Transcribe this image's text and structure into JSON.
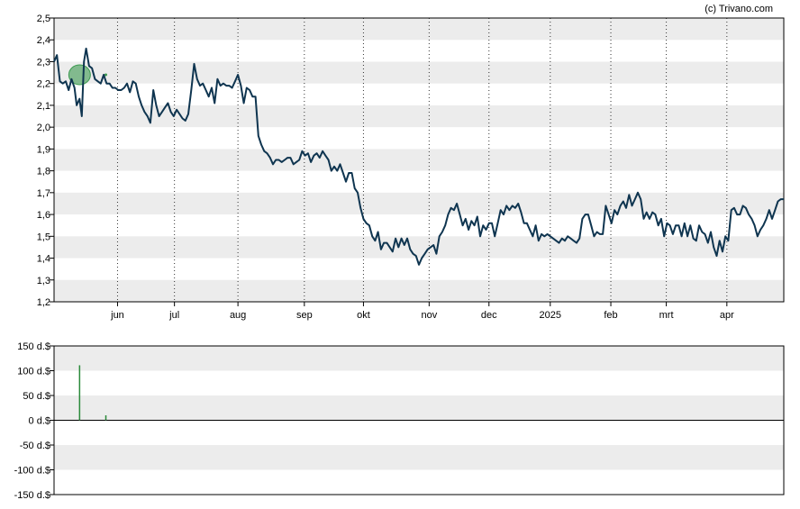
{
  "credit": "(c) Trivano.com",
  "colors": {
    "line": "#0f3550",
    "band": "#ececec",
    "bar": "#2a8a3a",
    "marker": "#3c9a50"
  },
  "chart_data": [
    {
      "type": "line",
      "ylim": [
        1.2,
        2.5
      ],
      "yticks": [
        "1,2",
        "1,3",
        "1,4",
        "1,5",
        "1,6",
        "1,7",
        "1,8",
        "1,9",
        "2,0",
        "2,1",
        "2,2",
        "2,3",
        "2,4",
        "2,5"
      ],
      "xticks": [
        {
          "label": "jun",
          "t": 0.087
        },
        {
          "label": "jul",
          "t": 0.165
        },
        {
          "label": "aug",
          "t": 0.252
        },
        {
          "label": "sep",
          "t": 0.343
        },
        {
          "label": "okt",
          "t": 0.424
        },
        {
          "label": "nov",
          "t": 0.514
        },
        {
          "label": "dec",
          "t": 0.596
        },
        {
          "label": "2025",
          "t": 0.68
        },
        {
          "label": "feb",
          "t": 0.763
        },
        {
          "label": "mrt",
          "t": 0.839
        },
        {
          "label": "apr",
          "t": 0.922
        }
      ],
      "grid": "horizontal bands, dotted vertical lines at month ticks",
      "events": [
        {
          "t": 0.035,
          "y": 2.24,
          "kind": "circle"
        },
        {
          "t": 0.071,
          "y": 2.24,
          "kind": "dot"
        }
      ],
      "series": [
        {
          "values": [
            [
              0.0,
              2.3
            ],
            [
              0.004,
              2.33
            ],
            [
              0.008,
              2.21
            ],
            [
              0.012,
              2.2
            ],
            [
              0.016,
              2.21
            ],
            [
              0.02,
              2.17
            ],
            [
              0.024,
              2.22
            ],
            [
              0.028,
              2.18
            ],
            [
              0.031,
              2.1
            ],
            [
              0.035,
              2.13
            ],
            [
              0.038,
              2.05
            ],
            [
              0.041,
              2.3
            ],
            [
              0.044,
              2.36
            ],
            [
              0.048,
              2.28
            ],
            [
              0.052,
              2.27
            ],
            [
              0.056,
              2.22
            ],
            [
              0.06,
              2.21
            ],
            [
              0.064,
              2.2
            ],
            [
              0.068,
              2.24
            ],
            [
              0.072,
              2.2
            ],
            [
              0.076,
              2.2
            ],
            [
              0.08,
              2.18
            ],
            [
              0.084,
              2.18
            ],
            [
              0.088,
              2.17
            ],
            [
              0.092,
              2.17
            ],
            [
              0.096,
              2.18
            ],
            [
              0.1,
              2.2
            ],
            [
              0.104,
              2.16
            ],
            [
              0.108,
              2.21
            ],
            [
              0.112,
              2.2
            ],
            [
              0.116,
              2.14
            ],
            [
              0.12,
              2.1
            ],
            [
              0.124,
              2.07
            ],
            [
              0.128,
              2.05
            ],
            [
              0.132,
              2.02
            ],
            [
              0.136,
              2.17
            ],
            [
              0.14,
              2.1
            ],
            [
              0.144,
              2.05
            ],
            [
              0.148,
              2.07
            ],
            [
              0.152,
              2.09
            ],
            [
              0.156,
              2.11
            ],
            [
              0.16,
              2.07
            ],
            [
              0.164,
              2.05
            ],
            [
              0.168,
              2.08
            ],
            [
              0.172,
              2.06
            ],
            [
              0.176,
              2.04
            ],
            [
              0.18,
              2.03
            ],
            [
              0.184,
              2.06
            ],
            [
              0.188,
              2.17
            ],
            [
              0.192,
              2.29
            ],
            [
              0.196,
              2.22
            ],
            [
              0.2,
              2.19
            ],
            [
              0.204,
              2.2
            ],
            [
              0.208,
              2.17
            ],
            [
              0.212,
              2.14
            ],
            [
              0.216,
              2.18
            ],
            [
              0.22,
              2.11
            ],
            [
              0.224,
              2.22
            ],
            [
              0.228,
              2.19
            ],
            [
              0.232,
              2.2
            ],
            [
              0.236,
              2.19
            ],
            [
              0.24,
              2.19
            ],
            [
              0.244,
              2.18
            ],
            [
              0.248,
              2.21
            ],
            [
              0.252,
              2.24
            ],
            [
              0.256,
              2.19
            ],
            [
              0.26,
              2.11
            ],
            [
              0.264,
              2.18
            ],
            [
              0.268,
              2.17
            ],
            [
              0.272,
              2.14
            ],
            [
              0.276,
              2.14
            ],
            [
              0.28,
              1.96
            ],
            [
              0.284,
              1.92
            ],
            [
              0.288,
              1.89
            ],
            [
              0.292,
              1.88
            ],
            [
              0.296,
              1.86
            ],
            [
              0.3,
              1.83
            ],
            [
              0.304,
              1.85
            ],
            [
              0.308,
              1.85
            ],
            [
              0.312,
              1.84
            ],
            [
              0.316,
              1.85
            ],
            [
              0.32,
              1.86
            ],
            [
              0.324,
              1.86
            ],
            [
              0.328,
              1.83
            ],
            [
              0.332,
              1.84
            ],
            [
              0.336,
              1.85
            ],
            [
              0.34,
              1.89
            ],
            [
              0.344,
              1.87
            ],
            [
              0.348,
              1.88
            ],
            [
              0.352,
              1.84
            ],
            [
              0.356,
              1.87
            ],
            [
              0.36,
              1.88
            ],
            [
              0.364,
              1.86
            ],
            [
              0.368,
              1.89
            ],
            [
              0.372,
              1.87
            ],
            [
              0.376,
              1.85
            ],
            [
              0.38,
              1.8
            ],
            [
              0.384,
              1.82
            ],
            [
              0.388,
              1.8
            ],
            [
              0.392,
              1.83
            ],
            [
              0.396,
              1.79
            ],
            [
              0.4,
              1.75
            ],
            [
              0.404,
              1.79
            ],
            [
              0.408,
              1.79
            ],
            [
              0.412,
              1.72
            ],
            [
              0.416,
              1.7
            ],
            [
              0.42,
              1.63
            ],
            [
              0.424,
              1.58
            ],
            [
              0.428,
              1.56
            ],
            [
              0.432,
              1.55
            ],
            [
              0.436,
              1.5
            ],
            [
              0.44,
              1.48
            ],
            [
              0.444,
              1.52
            ],
            [
              0.448,
              1.44
            ],
            [
              0.452,
              1.47
            ],
            [
              0.456,
              1.47
            ],
            [
              0.46,
              1.45
            ],
            [
              0.464,
              1.43
            ],
            [
              0.468,
              1.49
            ],
            [
              0.472,
              1.45
            ],
            [
              0.476,
              1.49
            ],
            [
              0.48,
              1.46
            ],
            [
              0.484,
              1.49
            ],
            [
              0.488,
              1.44
            ],
            [
              0.492,
              1.42
            ],
            [
              0.496,
              1.41
            ],
            [
              0.5,
              1.37
            ],
            [
              0.504,
              1.4
            ],
            [
              0.508,
              1.42
            ],
            [
              0.512,
              1.44
            ],
            [
              0.516,
              1.45
            ],
            [
              0.52,
              1.46
            ],
            [
              0.524,
              1.42
            ],
            [
              0.528,
              1.5
            ],
            [
              0.532,
              1.52
            ],
            [
              0.536,
              1.55
            ],
            [
              0.54,
              1.6
            ],
            [
              0.544,
              1.63
            ],
            [
              0.548,
              1.62
            ],
            [
              0.552,
              1.65
            ],
            [
              0.556,
              1.6
            ],
            [
              0.56,
              1.55
            ],
            [
              0.564,
              1.58
            ],
            [
              0.568,
              1.53
            ],
            [
              0.572,
              1.57
            ],
            [
              0.576,
              1.55
            ],
            [
              0.58,
              1.59
            ],
            [
              0.584,
              1.5
            ],
            [
              0.588,
              1.55
            ],
            [
              0.592,
              1.53
            ],
            [
              0.596,
              1.56
            ],
            [
              0.6,
              1.56
            ],
            [
              0.604,
              1.5
            ],
            [
              0.608,
              1.56
            ],
            [
              0.612,
              1.62
            ],
            [
              0.616,
              1.6
            ],
            [
              0.62,
              1.64
            ],
            [
              0.624,
              1.62
            ],
            [
              0.628,
              1.64
            ],
            [
              0.632,
              1.63
            ],
            [
              0.636,
              1.65
            ],
            [
              0.64,
              1.61
            ],
            [
              0.644,
              1.56
            ],
            [
              0.648,
              1.56
            ],
            [
              0.652,
              1.53
            ],
            [
              0.656,
              1.5
            ],
            [
              0.66,
              1.55
            ],
            [
              0.664,
              1.48
            ],
            [
              0.668,
              1.51
            ],
            [
              0.672,
              1.5
            ],
            [
              0.676,
              1.51
            ],
            [
              0.68,
              1.5
            ],
            [
              0.684,
              1.49
            ],
            [
              0.688,
              1.48
            ],
            [
              0.692,
              1.47
            ],
            [
              0.696,
              1.49
            ],
            [
              0.7,
              1.48
            ],
            [
              0.704,
              1.5
            ],
            [
              0.708,
              1.49
            ],
            [
              0.712,
              1.48
            ],
            [
              0.716,
              1.47
            ],
            [
              0.72,
              1.49
            ],
            [
              0.724,
              1.58
            ],
            [
              0.728,
              1.6
            ],
            [
              0.732,
              1.6
            ],
            [
              0.736,
              1.55
            ],
            [
              0.74,
              1.5
            ],
            [
              0.744,
              1.52
            ],
            [
              0.748,
              1.51
            ],
            [
              0.752,
              1.51
            ],
            [
              0.756,
              1.64
            ],
            [
              0.76,
              1.6
            ],
            [
              0.764,
              1.56
            ],
            [
              0.768,
              1.62
            ],
            [
              0.772,
              1.6
            ],
            [
              0.776,
              1.64
            ],
            [
              0.78,
              1.66
            ],
            [
              0.784,
              1.63
            ],
            [
              0.788,
              1.69
            ],
            [
              0.792,
              1.64
            ],
            [
              0.796,
              1.67
            ],
            [
              0.8,
              1.7
            ],
            [
              0.804,
              1.67
            ],
            [
              0.808,
              1.58
            ],
            [
              0.812,
              1.61
            ],
            [
              0.816,
              1.58
            ],
            [
              0.82,
              1.61
            ],
            [
              0.824,
              1.6
            ],
            [
              0.828,
              1.55
            ],
            [
              0.832,
              1.58
            ],
            [
              0.836,
              1.5
            ],
            [
              0.84,
              1.56
            ],
            [
              0.844,
              1.55
            ],
            [
              0.848,
              1.51
            ],
            [
              0.852,
              1.55
            ],
            [
              0.856,
              1.55
            ],
            [
              0.86,
              1.5
            ],
            [
              0.864,
              1.56
            ],
            [
              0.868,
              1.5
            ],
            [
              0.872,
              1.55
            ],
            [
              0.876,
              1.49
            ],
            [
              0.88,
              1.48
            ],
            [
              0.884,
              1.55
            ],
            [
              0.888,
              1.52
            ],
            [
              0.892,
              1.51
            ],
            [
              0.896,
              1.47
            ],
            [
              0.9,
              1.52
            ],
            [
              0.904,
              1.45
            ],
            [
              0.908,
              1.41
            ],
            [
              0.912,
              1.48
            ],
            [
              0.916,
              1.43
            ],
            [
              0.92,
              1.5
            ],
            [
              0.924,
              1.48
            ],
            [
              0.928,
              1.62
            ],
            [
              0.932,
              1.63
            ],
            [
              0.936,
              1.6
            ],
            [
              0.94,
              1.6
            ],
            [
              0.944,
              1.64
            ],
            [
              0.948,
              1.63
            ],
            [
              0.952,
              1.6
            ],
            [
              0.956,
              1.58
            ],
            [
              0.96,
              1.55
            ],
            [
              0.964,
              1.5
            ],
            [
              0.968,
              1.53
            ],
            [
              0.972,
              1.55
            ],
            [
              0.976,
              1.58
            ],
            [
              0.98,
              1.62
            ],
            [
              0.984,
              1.58
            ],
            [
              0.988,
              1.62
            ],
            [
              0.992,
              1.66
            ],
            [
              0.996,
              1.67
            ],
            [
              1.0,
              1.67
            ]
          ]
        }
      ]
    },
    {
      "type": "bar",
      "ylim": [
        -150,
        150
      ],
      "yticks": [
        "150 d.$",
        "100 d.$",
        "50 d.$",
        "0 d.$",
        "-50 d.$",
        "-100 d.$",
        "-150 d.$"
      ],
      "values": [
        {
          "t": 0.035,
          "value": 111
        },
        {
          "t": 0.071,
          "value": 10
        }
      ]
    }
  ]
}
